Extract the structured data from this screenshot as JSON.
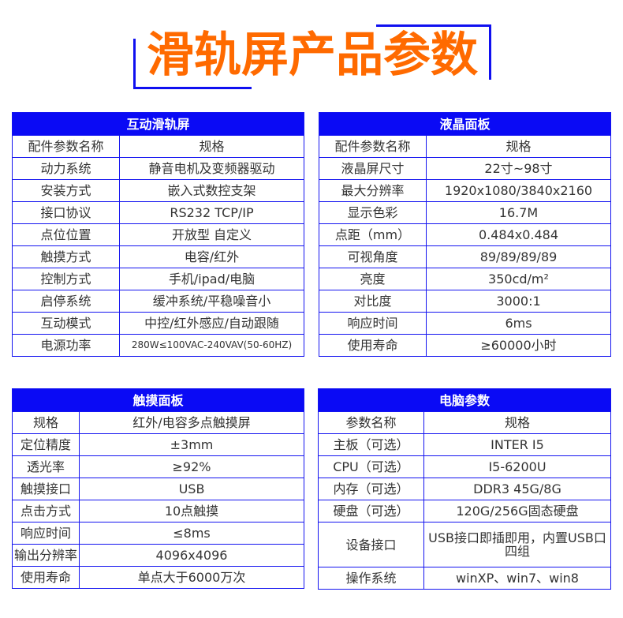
{
  "title": "滑轨屏产品参数",
  "colors": {
    "title": "#ff6a00",
    "header_bg": "#0a0af5",
    "border": "#1414f0"
  },
  "tables": [
    {
      "header": "互动滑轨屏",
      "rows": [
        [
          "配件参数名称",
          "规格"
        ],
        [
          "动力系统",
          "静音电机及变频器驱动"
        ],
        [
          "安装方式",
          "嵌入式数控支架"
        ],
        [
          "接口协议",
          "RS232 TCP/IP"
        ],
        [
          "点位位置",
          "开放型  自定义"
        ],
        [
          "触摸方式",
          "电容/红外"
        ],
        [
          "控制方式",
          "手机/ipad/电脑"
        ],
        [
          "启停系统",
          "缓冲系统/平稳噪音小"
        ],
        [
          "互动模式",
          "中控/红外感应/自动跟随"
        ],
        [
          "电源功率",
          "280W≤100VAC-240VAV(50-60HZ)"
        ]
      ]
    },
    {
      "header": "液晶面板",
      "rows": [
        [
          "配件参数名称",
          "规格"
        ],
        [
          "液晶屏尺寸",
          "22寸~98寸"
        ],
        [
          "最大分辨率",
          "1920x1080/3840x2160"
        ],
        [
          "显示色彩",
          "16.7M"
        ],
        [
          "点距（mm）",
          "0.484x0.484"
        ],
        [
          "可视角度",
          "89/89/89/89"
        ],
        [
          "亮度",
          "350cd/m²"
        ],
        [
          "对比度",
          "3000:1"
        ],
        [
          "响应时间",
          "6ms"
        ],
        [
          "使用寿命",
          "≥60000小时"
        ]
      ]
    },
    {
      "header": "触摸面板",
      "rows": [
        [
          "规格",
          "红外/电容多点触摸屏"
        ],
        [
          "定位精度",
          "±3mm"
        ],
        [
          "透光率",
          "≥92%"
        ],
        [
          "触摸接口",
          "USB"
        ],
        [
          "点击方式",
          "10点触摸"
        ],
        [
          "响应时间",
          "≤8ms"
        ],
        [
          "输出分辨率",
          "4096x4096"
        ],
        [
          "使用寿命",
          "单点大于6000万次"
        ]
      ]
    },
    {
      "header": "电脑参数",
      "rows": [
        [
          "参数名称",
          "规格"
        ],
        [
          "主板（可选）",
          "INTER  I5"
        ],
        [
          "CPU（可选）",
          "I5-6200U"
        ],
        [
          "内存（可选）",
          "DDR3  45G/8G"
        ],
        [
          "硬盘（可选）",
          "120G/256G固态硬盘"
        ],
        [
          "设备接口",
          "USB接口即插即用，内置USB口四组"
        ],
        [
          "操作系统",
          "winXP、win7、win8"
        ]
      ]
    }
  ]
}
